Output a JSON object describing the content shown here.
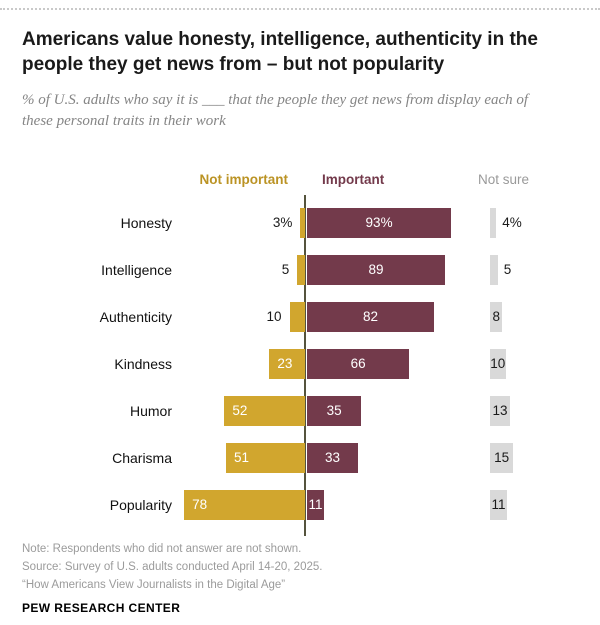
{
  "header": {
    "title": "Americans value honesty, intelligence, authenticity in the people they get news from – but not popularity",
    "subtitle": "% of U.S. adults who say it is ___ that the people they get news from display each of these personal traits in their work"
  },
  "chart_data": {
    "type": "bar",
    "orientation": "horizontal-diverging",
    "title": "Americans value honesty, intelligence, authenticity in the people they get news from – but not popularity",
    "categories": [
      "Honesty",
      "Intelligence",
      "Authenticity",
      "Kindness",
      "Humor",
      "Charisma",
      "Popularity"
    ],
    "series": [
      {
        "name": "Not important",
        "color": "#d1a62e",
        "header_color": "#bb9324",
        "values": [
          3,
          5,
          10,
          23,
          52,
          51,
          78
        ],
        "labels": [
          "3%",
          "5",
          "10",
          "23",
          "52",
          "51",
          "78"
        ]
      },
      {
        "name": "Important",
        "color": "#733a4b",
        "header_color": "#733a4b",
        "values": [
          93,
          89,
          82,
          66,
          35,
          33,
          11
        ],
        "labels": [
          "93%",
          "89",
          "82",
          "66",
          "35",
          "33",
          "11"
        ]
      },
      {
        "name": "Not sure",
        "color": "#d9d9d9",
        "header_color": "#9a9a9a",
        "values": [
          4,
          5,
          8,
          10,
          13,
          15,
          11
        ],
        "labels": [
          "4%",
          "5",
          "8",
          "10",
          "13",
          "15",
          "11"
        ]
      }
    ],
    "axis_color": "#55533d",
    "legend_position": "top",
    "xlim": [
      0,
      100
    ],
    "grid": false
  },
  "footer": {
    "note": "Note: Respondents who did not answer are not shown.",
    "source": "Source: Survey of U.S. adults conducted April 14-20, 2025.",
    "report": "“How Americans View Journalists in the Digital Age”",
    "brand": "PEW RESEARCH CENTER"
  }
}
